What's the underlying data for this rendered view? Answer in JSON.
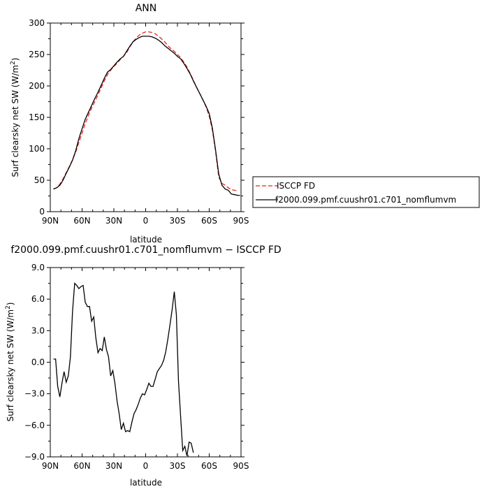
{
  "chart_data": [
    {
      "type": "line",
      "title": "ANN",
      "xlabel": "latitude",
      "ylabel": "Surf clearsky net SW (W/m",
      "ylabel_sup": "2",
      "ylabel_end": ")",
      "xlim": [
        90,
        -90
      ],
      "ylim": [
        0,
        300
      ],
      "xticks": [
        90,
        60,
        30,
        0,
        -30,
        -60,
        -90
      ],
      "xtick_labels": [
        "90N",
        "60N",
        "30N",
        "0",
        "30S",
        "60S",
        "90S"
      ],
      "yticks": [
        0,
        50,
        100,
        150,
        200,
        250,
        300
      ],
      "ytick_labels": [
        "0",
        "50",
        "100",
        "150",
        "200",
        "250",
        "300"
      ],
      "legend_placement": "right",
      "series": [
        {
          "name": "ISCCP FD",
          "color": "#e8231f",
          "dash": true,
          "points": [
            [
              87,
              36
            ],
            [
              84,
              38
            ],
            [
              81,
              44
            ],
            [
              78,
              52
            ],
            [
              75,
              62
            ],
            [
              72,
              72
            ],
            [
              69,
              82
            ],
            [
              66,
              95
            ],
            [
              63,
              110
            ],
            [
              60,
              125
            ],
            [
              57,
              140
            ],
            [
              54,
              153
            ],
            [
              51,
              165
            ],
            [
              48,
              175
            ],
            [
              45,
              186
            ],
            [
              42,
              197
            ],
            [
              39,
              208
            ],
            [
              36,
              218
            ],
            [
              33,
              225
            ],
            [
              30,
              231
            ],
            [
              27,
              236
            ],
            [
              24,
              242
            ],
            [
              21,
              247
            ],
            [
              18,
              253
            ],
            [
              15,
              262
            ],
            [
              12,
              270
            ],
            [
              9,
              276
            ],
            [
              6,
              281
            ],
            [
              3,
              284
            ],
            [
              0,
              286
            ],
            [
              -3,
              286
            ],
            [
              -6,
              285
            ],
            [
              -9,
              283
            ],
            [
              -12,
              279
            ],
            [
              -15,
              275
            ],
            [
              -18,
              270
            ],
            [
              -21,
              264
            ],
            [
              -24,
              259
            ],
            [
              -27,
              255
            ],
            [
              -30,
              250
            ],
            [
              -33,
              245
            ],
            [
              -36,
              238
            ],
            [
              -39,
              230
            ],
            [
              -42,
              220
            ],
            [
              -45,
              209
            ],
            [
              -48,
              198
            ],
            [
              -51,
              188
            ],
            [
              -54,
              178
            ],
            [
              -57,
              167
            ],
            [
              -60,
              152
            ],
            [
              -63,
              130
            ],
            [
              -66,
              96
            ],
            [
              -69,
              55
            ],
            [
              -72,
              45
            ],
            [
              -75,
              42
            ],
            [
              -78,
              38
            ],
            [
              -81,
              35
            ],
            [
              -84,
              34
            ],
            [
              -87,
              33
            ]
          ]
        },
        {
          "name": "f2000.099.pmf.cuushr01.c701_nomflumvm",
          "color": "#000000",
          "dash": false,
          "points": [
            [
              87,
              36
            ],
            [
              84,
              38
            ],
            [
              81,
              42
            ],
            [
              78,
              50
            ],
            [
              75,
              61
            ],
            [
              72,
              71
            ],
            [
              69,
              82
            ],
            [
              66,
              97
            ],
            [
              63,
              116
            ],
            [
              60,
              132
            ],
            [
              57,
              147
            ],
            [
              54,
              158
            ],
            [
              51,
              169
            ],
            [
              48,
              180
            ],
            [
              45,
              190
            ],
            [
              42,
              201
            ],
            [
              39,
              212
            ],
            [
              36,
              222
            ],
            [
              33,
              226
            ],
            [
              30,
              232
            ],
            [
              27,
              238
            ],
            [
              24,
              243
            ],
            [
              21,
              247
            ],
            [
              18,
              255
            ],
            [
              15,
              263
            ],
            [
              12,
              270
            ],
            [
              9,
              274
            ],
            [
              6,
              277
            ],
            [
              3,
              279
            ],
            [
              0,
              279
            ],
            [
              -3,
              279
            ],
            [
              -6,
              278
            ],
            [
              -9,
              276
            ],
            [
              -12,
              273
            ],
            [
              -15,
              269
            ],
            [
              -18,
              264
            ],
            [
              -21,
              260
            ],
            [
              -24,
              256
            ],
            [
              -27,
              252
            ],
            [
              -30,
              247
            ],
            [
              -33,
              243
            ],
            [
              -36,
              236
            ],
            [
              -39,
              228
            ],
            [
              -42,
              219
            ],
            [
              -45,
              208
            ],
            [
              -48,
              198
            ],
            [
              -51,
              188
            ],
            [
              -54,
              178
            ],
            [
              -57,
              168
            ],
            [
              -60,
              156
            ],
            [
              -63,
              133
            ],
            [
              -66,
              98
            ],
            [
              -69,
              60
            ],
            [
              -72,
              42
            ],
            [
              -75,
              36
            ],
            [
              -78,
              34
            ],
            [
              -81,
              28
            ],
            [
              -84,
              27
            ],
            [
              -87,
              26
            ],
            [
              -89,
              26
            ]
          ]
        }
      ]
    },
    {
      "type": "line",
      "title": "f2000.099.pmf.cuushr01.c701_nomflumvm − ISCCP FD",
      "xlabel": "latitude",
      "ylabel": "Surf clearsky net SW (W/m",
      "ylabel_sup": "2",
      "ylabel_end": ")",
      "xlim": [
        90,
        -90
      ],
      "ylim": [
        -9,
        9
      ],
      "xticks": [
        90,
        60,
        30,
        0,
        -30,
        -60,
        -90
      ],
      "xtick_labels": [
        "90N",
        "60N",
        "30N",
        "0",
        "30S",
        "60S",
        "90S"
      ],
      "yticks": [
        9,
        6,
        3,
        0,
        -3,
        -6,
        -9
      ],
      "ytick_labels": [
        "9.0",
        "6.0",
        "3.0",
        "0.0",
        "−3.0",
        "−6.0",
        "−9.0"
      ],
      "series": [
        {
          "color": "#000000",
          "dash": false,
          "points": [
            [
              87,
              0.3
            ],
            [
              85,
              0.3
            ],
            [
              83,
              -2.3
            ],
            [
              81,
              -3.3
            ],
            [
              79,
              -2.0
            ],
            [
              77,
              -0.9
            ],
            [
              75,
              -1.9
            ],
            [
              73,
              -1.3
            ],
            [
              71,
              0.5
            ],
            [
              69,
              4.8
            ],
            [
              67,
              7.5
            ],
            [
              65,
              7.3
            ],
            [
              63,
              7.0
            ],
            [
              61,
              7.2
            ],
            [
              59,
              7.3
            ],
            [
              57,
              5.7
            ],
            [
              55,
              5.3
            ],
            [
              53,
              5.3
            ],
            [
              51,
              3.9
            ],
            [
              49,
              4.3
            ],
            [
              47,
              2.3
            ],
            [
              45,
              0.9
            ],
            [
              43,
              1.3
            ],
            [
              41,
              1.1
            ],
            [
              39,
              2.4
            ],
            [
              37,
              1.2
            ],
            [
              35,
              0.5
            ],
            [
              33,
              -1.3
            ],
            [
              31,
              -0.8
            ],
            [
              29,
              -2.0
            ],
            [
              27,
              -3.7
            ],
            [
              25,
              -4.9
            ],
            [
              23,
              -6.4
            ],
            [
              21,
              -5.8
            ],
            [
              19,
              -6.6
            ],
            [
              17,
              -6.5
            ],
            [
              15,
              -6.6
            ],
            [
              13,
              -5.7
            ],
            [
              11,
              -4.9
            ],
            [
              9,
              -4.5
            ],
            [
              7,
              -4.0
            ],
            [
              5,
              -3.4
            ],
            [
              3,
              -3.0
            ],
            [
              1,
              -3.1
            ],
            [
              -1,
              -2.6
            ],
            [
              -3,
              -2.0
            ],
            [
              -5,
              -2.3
            ],
            [
              -7,
              -2.3
            ],
            [
              -9,
              -1.6
            ],
            [
              -11,
              -0.9
            ],
            [
              -13,
              -0.6
            ],
            [
              -15,
              -0.3
            ],
            [
              -17,
              0.2
            ],
            [
              -19,
              1.0
            ],
            [
              -21,
              2.2
            ],
            [
              -23,
              3.6
            ],
            [
              -25,
              5.0
            ],
            [
              -27,
              6.7
            ],
            [
              -29,
              4.5
            ],
            [
              -31,
              -1.8
            ],
            [
              -33,
              -5.2
            ],
            [
              -35,
              -8.4
            ],
            [
              -37,
              -8.0
            ],
            [
              -39,
              -8.9
            ],
            [
              -41,
              -7.6
            ],
            [
              -43,
              -7.7
            ],
            [
              -45,
              -8.6
            ]
          ]
        }
      ]
    }
  ]
}
